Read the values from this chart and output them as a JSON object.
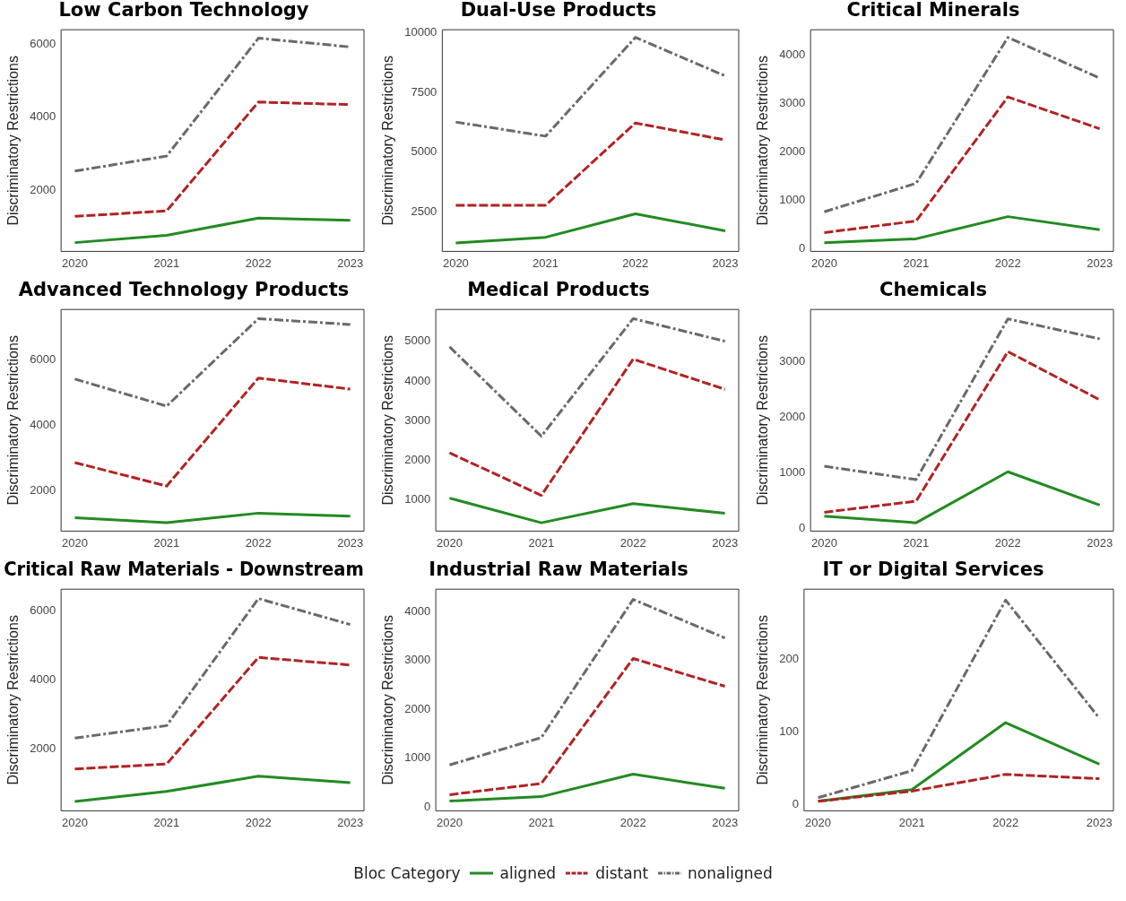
{
  "chart_data": [
    {
      "type": "line",
      "title": "Low Carbon Technology",
      "ylabel": "Discriminatory Restrictions",
      "x": [
        2020,
        2021,
        2022,
        2023
      ],
      "xlim": [
        2019.85,
        2023.15
      ],
      "xticks": [
        2020,
        2021,
        2022,
        2023
      ],
      "ylim": [
        320,
        6390
      ],
      "yticks": [
        2000,
        4000,
        6000
      ],
      "legend": "bottom",
      "legend_title": "Bloc Category",
      "series": [
        {
          "name": "aligned",
          "color": "#228b22",
          "line_style": "solid",
          "values": [
            560,
            760,
            1230,
            1170
          ]
        },
        {
          "name": "distant",
          "color": "#b22222",
          "line_style": "dashed",
          "values": [
            1280,
            1430,
            4410,
            4340
          ]
        },
        {
          "name": "nonaligned",
          "color": "#696969",
          "line_style": "dashdot",
          "values": [
            2520,
            2930,
            6160,
            5920
          ]
        }
      ]
    },
    {
      "type": "line",
      "title": "Dual-Use Products",
      "ylabel": "Discriminatory Restrictions",
      "x": [
        2020,
        2021,
        2022,
        2023
      ],
      "xlim": [
        2019.85,
        2023.15
      ],
      "xticks": [
        2020,
        2021,
        2022,
        2023
      ],
      "ylim": [
        850,
        10120
      ],
      "yticks": [
        2500,
        5000,
        7500,
        10000
      ],
      "series": [
        {
          "color": "#228b22",
          "line_style": "solid",
          "values": [
            1200,
            1440,
            2420,
            1710
          ]
        },
        {
          "color": "#b22222",
          "line_style": "dashed",
          "values": [
            2780,
            2780,
            6220,
            5510
          ]
        },
        {
          "color": "#696969",
          "line_style": "dashdot",
          "values": [
            6260,
            5670,
            9800,
            8190
          ]
        }
      ]
    },
    {
      "type": "line",
      "title": "Critical Minerals",
      "ylabel": "Discriminatory Restrictions",
      "x": [
        2020,
        2021,
        2022,
        2023
      ],
      "xlim": [
        2019.85,
        2023.15
      ],
      "xticks": [
        2020,
        2021,
        2022,
        2023
      ],
      "ylim": [
        -60,
        4530
      ],
      "yticks": [
        0,
        1000,
        2000,
        3000,
        4000
      ],
      "series": [
        {
          "color": "#228b22",
          "line_style": "solid",
          "values": [
            120,
            200,
            660,
            390
          ]
        },
        {
          "color": "#b22222",
          "line_style": "dashed",
          "values": [
            330,
            570,
            3140,
            2480
          ]
        },
        {
          "color": "#696969",
          "line_style": "dashdot",
          "values": [
            760,
            1350,
            4370,
            3530
          ]
        }
      ]
    },
    {
      "type": "line",
      "title": "Advanced Technology Products",
      "ylabel": "Discriminatory Restrictions",
      "x": [
        2020,
        2021,
        2022,
        2023
      ],
      "xlim": [
        2019.85,
        2023.15
      ],
      "xticks": [
        2020,
        2021,
        2022,
        2023
      ],
      "ylim": [
        760,
        7550
      ],
      "yticks": [
        2000,
        4000,
        6000
      ],
      "series": [
        {
          "color": "#228b22",
          "line_style": "solid",
          "values": [
            1170,
            1020,
            1310,
            1220
          ]
        },
        {
          "color": "#b22222",
          "line_style": "dashed",
          "values": [
            2860,
            2140,
            5450,
            5110
          ]
        },
        {
          "color": "#696969",
          "line_style": "dashdot",
          "values": [
            5420,
            4590,
            7270,
            7090
          ]
        }
      ]
    },
    {
      "type": "line",
      "title": "Medical Products",
      "ylabel": "Discriminatory Restrictions",
      "x": [
        2020,
        2021,
        2022,
        2023
      ],
      "xlim": [
        2019.85,
        2023.15
      ],
      "xticks": [
        2020,
        2021,
        2022,
        2023
      ],
      "ylim": [
        220,
        5800
      ],
      "yticks": [
        1000,
        2000,
        3000,
        4000,
        5000
      ],
      "series": [
        {
          "color": "#228b22",
          "line_style": "solid",
          "values": [
            1050,
            430,
            910,
            670
          ]
        },
        {
          "color": "#b22222",
          "line_style": "dashed",
          "values": [
            2190,
            1120,
            4550,
            3790
          ]
        },
        {
          "color": "#696969",
          "line_style": "dashdot",
          "values": [
            4860,
            2610,
            5570,
            5000
          ]
        }
      ]
    },
    {
      "type": "line",
      "title": "Chemicals",
      "ylabel": "Discriminatory Restrictions",
      "x": [
        2020,
        2021,
        2022,
        2023
      ],
      "xlim": [
        2019.85,
        2023.15
      ],
      "xticks": [
        2020,
        2021,
        2022,
        2023
      ],
      "ylim": [
        -50,
        3950
      ],
      "yticks": [
        0,
        1000,
        2000,
        3000
      ],
      "series": [
        {
          "color": "#228b22",
          "line_style": "solid",
          "values": [
            220,
            100,
            1020,
            420
          ]
        },
        {
          "color": "#b22222",
          "line_style": "dashed",
          "values": [
            290,
            490,
            3190,
            2320
          ]
        },
        {
          "color": "#696969",
          "line_style": "dashdot",
          "values": [
            1120,
            880,
            3780,
            3420
          ]
        }
      ]
    },
    {
      "type": "line",
      "title": "Critical Raw Materials - Downstream",
      "ylabel": "Discriminatory Restrictions",
      "x": [
        2020,
        2021,
        2022,
        2023
      ],
      "xlim": [
        2019.85,
        2023.15
      ],
      "xticks": [
        2020,
        2021,
        2022,
        2023
      ],
      "ylim": [
        220,
        6620
      ],
      "yticks": [
        2000,
        4000,
        6000
      ],
      "series": [
        {
          "color": "#228b22",
          "line_style": "solid",
          "values": [
            490,
            780,
            1220,
            1030
          ]
        },
        {
          "color": "#b22222",
          "line_style": "dashed",
          "values": [
            1430,
            1570,
            4650,
            4430
          ]
        },
        {
          "color": "#696969",
          "line_style": "dashdot",
          "values": [
            2320,
            2680,
            6350,
            5600
          ]
        }
      ]
    },
    {
      "type": "line",
      "title": "Industrial Raw Materials",
      "ylabel": "Discriminatory Restrictions",
      "x": [
        2020,
        2021,
        2022,
        2023
      ],
      "xlim": [
        2019.85,
        2023.15
      ],
      "xticks": [
        2020,
        2021,
        2022,
        2023
      ],
      "ylim": [
        -80,
        4460
      ],
      "yticks": [
        0,
        1000,
        2000,
        3000,
        4000
      ],
      "series": [
        {
          "color": "#228b22",
          "line_style": "solid",
          "values": [
            120,
            210,
            670,
            380
          ]
        },
        {
          "color": "#b22222",
          "line_style": "dashed",
          "values": [
            250,
            480,
            3040,
            2470
          ]
        },
        {
          "color": "#696969",
          "line_style": "dashdot",
          "values": [
            860,
            1420,
            4250,
            3460
          ]
        }
      ]
    },
    {
      "type": "line",
      "title": "IT or Digital Services",
      "ylabel": "Discriminatory Restrictions",
      "x": [
        2020,
        2021,
        2022,
        2023
      ],
      "xlim": [
        2019.85,
        2023.15
      ],
      "xticks": [
        2020,
        2021,
        2022,
        2023
      ],
      "ylim": [
        -8,
        296
      ],
      "yticks": [
        0,
        100,
        200
      ],
      "series": [
        {
          "color": "#228b22",
          "line_style": "solid",
          "values": [
            5,
            21,
            113,
            56
          ]
        },
        {
          "color": "#b22222",
          "line_style": "dashed",
          "values": [
            5,
            19,
            42,
            36
          ]
        },
        {
          "color": "#696969",
          "line_style": "dashdot",
          "values": [
            10,
            47,
            281,
            119
          ]
        }
      ]
    }
  ]
}
